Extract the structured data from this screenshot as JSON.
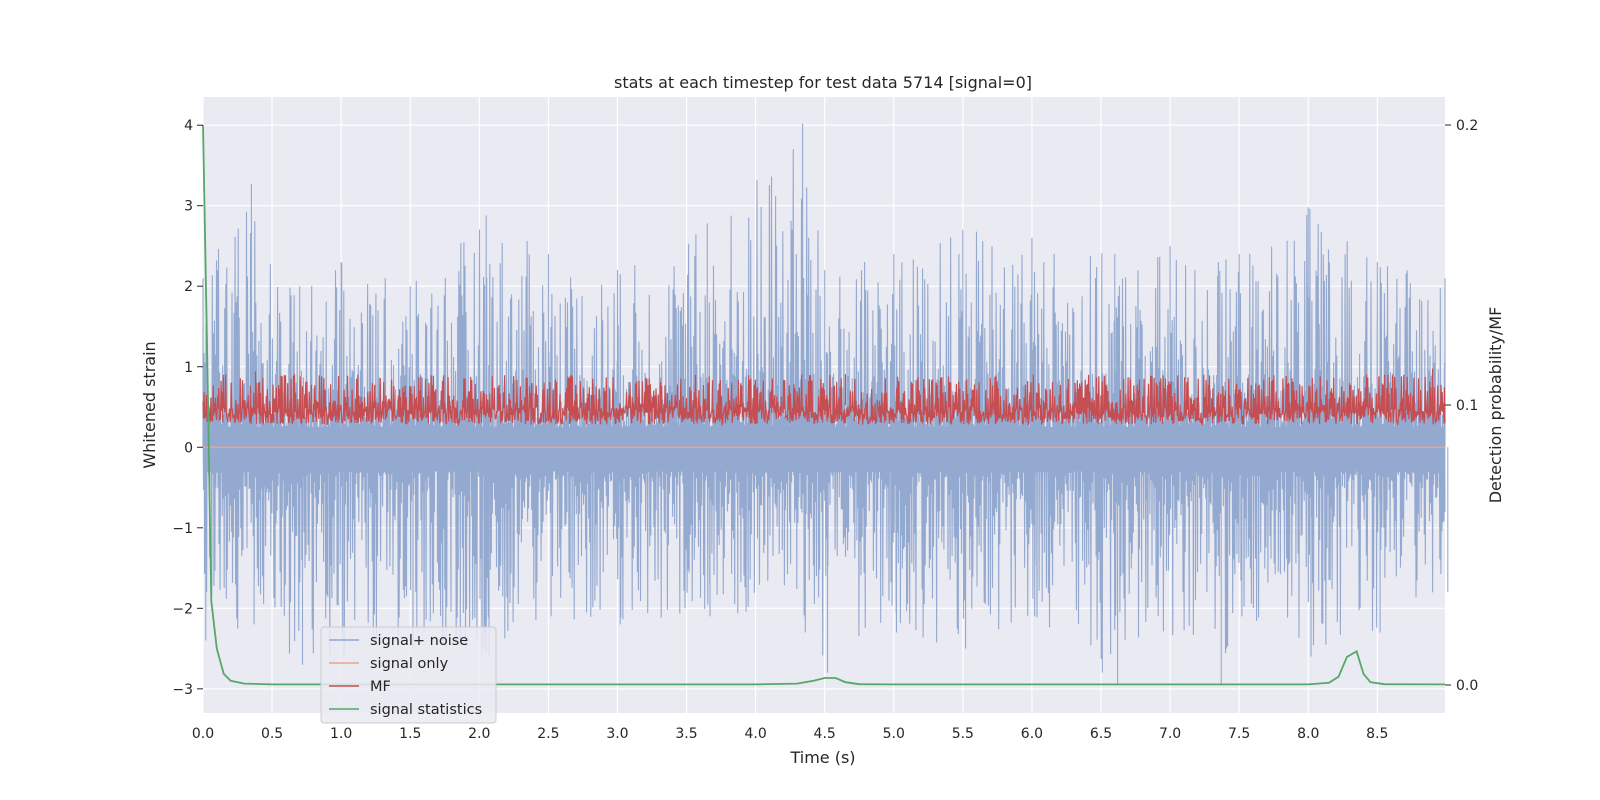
{
  "chart_data": {
    "type": "line",
    "title": "stats at each timestep for test data 5714 [signal=0]",
    "xlabel": "Time (s)",
    "ylabel": "Whitened strain",
    "ylabel_right": "Detection probability/MF",
    "xlim": [
      0.0,
      8.99
    ],
    "ylim": [
      -3.3,
      4.35
    ],
    "ylim_right": [
      -0.01,
      0.21
    ],
    "xticks": [
      "0.0",
      "0.5",
      "1.0",
      "1.5",
      "2.0",
      "2.5",
      "3.0",
      "3.5",
      "4.0",
      "4.5",
      "5.0",
      "5.5",
      "6.0",
      "6.5",
      "7.0",
      "7.5",
      "8.0",
      "8.5"
    ],
    "yticks_left": [
      "4",
      "3",
      "2",
      "1",
      "0",
      "−1",
      "−2",
      "−3"
    ],
    "yticks_left_values": [
      4,
      3,
      2,
      1,
      0,
      -1,
      -2,
      -3
    ],
    "yticks_right": [
      "0.2",
      "0.1",
      "0.0"
    ],
    "yticks_right_values": [
      0.2,
      0.1,
      0.0
    ],
    "grid": true,
    "legend_position": "lower-left",
    "series": [
      {
        "name": "signal+ noise",
        "color": "#8fa5cc",
        "axis": "left",
        "description_type": "dense noise",
        "envelope": [
          [
            0.0,
            2.1,
            -2.4
          ],
          [
            0.35,
            3.27,
            -2.2
          ],
          [
            0.7,
            2.0,
            -2.7
          ],
          [
            1.0,
            2.3,
            -2.6
          ],
          [
            1.5,
            2.0,
            -2.5
          ],
          [
            2.05,
            2.88,
            -2.6
          ],
          [
            2.5,
            2.4,
            -2.1
          ],
          [
            3.0,
            2.2,
            -2.2
          ],
          [
            3.65,
            2.78,
            -2.1
          ],
          [
            4.34,
            4.02,
            -2.3
          ],
          [
            4.5,
            2.2,
            -2.8
          ],
          [
            5.0,
            2.4,
            -2.3
          ],
          [
            5.5,
            2.7,
            -2.5
          ],
          [
            6.0,
            2.6,
            -2.1
          ],
          [
            6.6,
            2.4,
            -2.95
          ],
          [
            7.0,
            2.5,
            -2.3
          ],
          [
            7.35,
            2.3,
            -2.95
          ],
          [
            7.5,
            2.4,
            -2.1
          ],
          [
            8.0,
            2.98,
            -2.6
          ],
          [
            8.5,
            2.3,
            -2.3
          ],
          [
            8.99,
            2.1,
            -1.8
          ]
        ]
      },
      {
        "name": "signal only",
        "color": "#e8a58c",
        "axis": "left",
        "x": [
          0.0,
          8.99
        ],
        "y": [
          0.0,
          0.0
        ]
      },
      {
        "name": "MF",
        "color": "#c44e52",
        "axis": "right",
        "description_type": "dense noise",
        "range": [
          0.093,
          0.111
        ],
        "peaks": [
          [
            0.38,
            0.112
          ],
          [
            4.65,
            0.111
          ],
          [
            8.9,
            0.113
          ]
        ]
      },
      {
        "name": "signal statistics",
        "color": "#55a868",
        "axis": "right",
        "x": [
          0.0,
          0.03,
          0.06,
          0.1,
          0.15,
          0.2,
          0.3,
          0.5,
          1.0,
          2.0,
          3.0,
          4.0,
          4.3,
          4.42,
          4.5,
          4.58,
          4.65,
          4.75,
          5.0,
          6.0,
          7.0,
          8.0,
          8.15,
          8.22,
          8.28,
          8.35,
          8.4,
          8.45,
          8.55,
          8.99
        ],
        "y": [
          0.2,
          0.12,
          0.03,
          0.013,
          0.004,
          0.0015,
          0.0005,
          0.0002,
          0.0002,
          0.0002,
          0.0002,
          0.0002,
          0.0005,
          0.0015,
          0.0025,
          0.0025,
          0.001,
          0.0003,
          0.0002,
          0.0002,
          0.0002,
          0.0002,
          0.0008,
          0.003,
          0.01,
          0.012,
          0.004,
          0.001,
          0.0003,
          0.0002
        ]
      }
    ]
  }
}
